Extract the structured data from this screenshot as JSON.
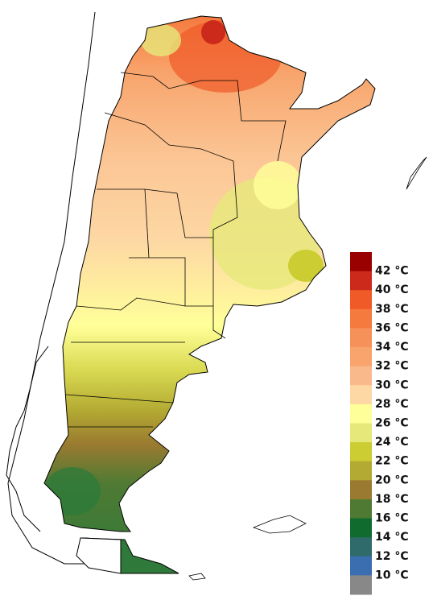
{
  "legend": {
    "labels": [
      "42 °C",
      "40 °C",
      "38 °C",
      "36 °C",
      "34 °C",
      "32 °C",
      "30 °C",
      "28 °C",
      "26 °C",
      "24 °C",
      "22 °C",
      "20 °C",
      "18 °C",
      "16 °C",
      "14 °C",
      "12 °C",
      "10 °C"
    ],
    "colors": [
      "#990000",
      "#cc2a1a",
      "#f05a28",
      "#f57a3e",
      "#f7915a",
      "#f8a46c",
      "#fab98a",
      "#fdd8a4",
      "#ffff99",
      "#e6e87a",
      "#cccc33",
      "#b3aa33",
      "#9a7a30",
      "#4f7a33",
      "#0f6b2e",
      "#2f6b6b",
      "#3b6eb0",
      "#888888"
    ]
  }
}
